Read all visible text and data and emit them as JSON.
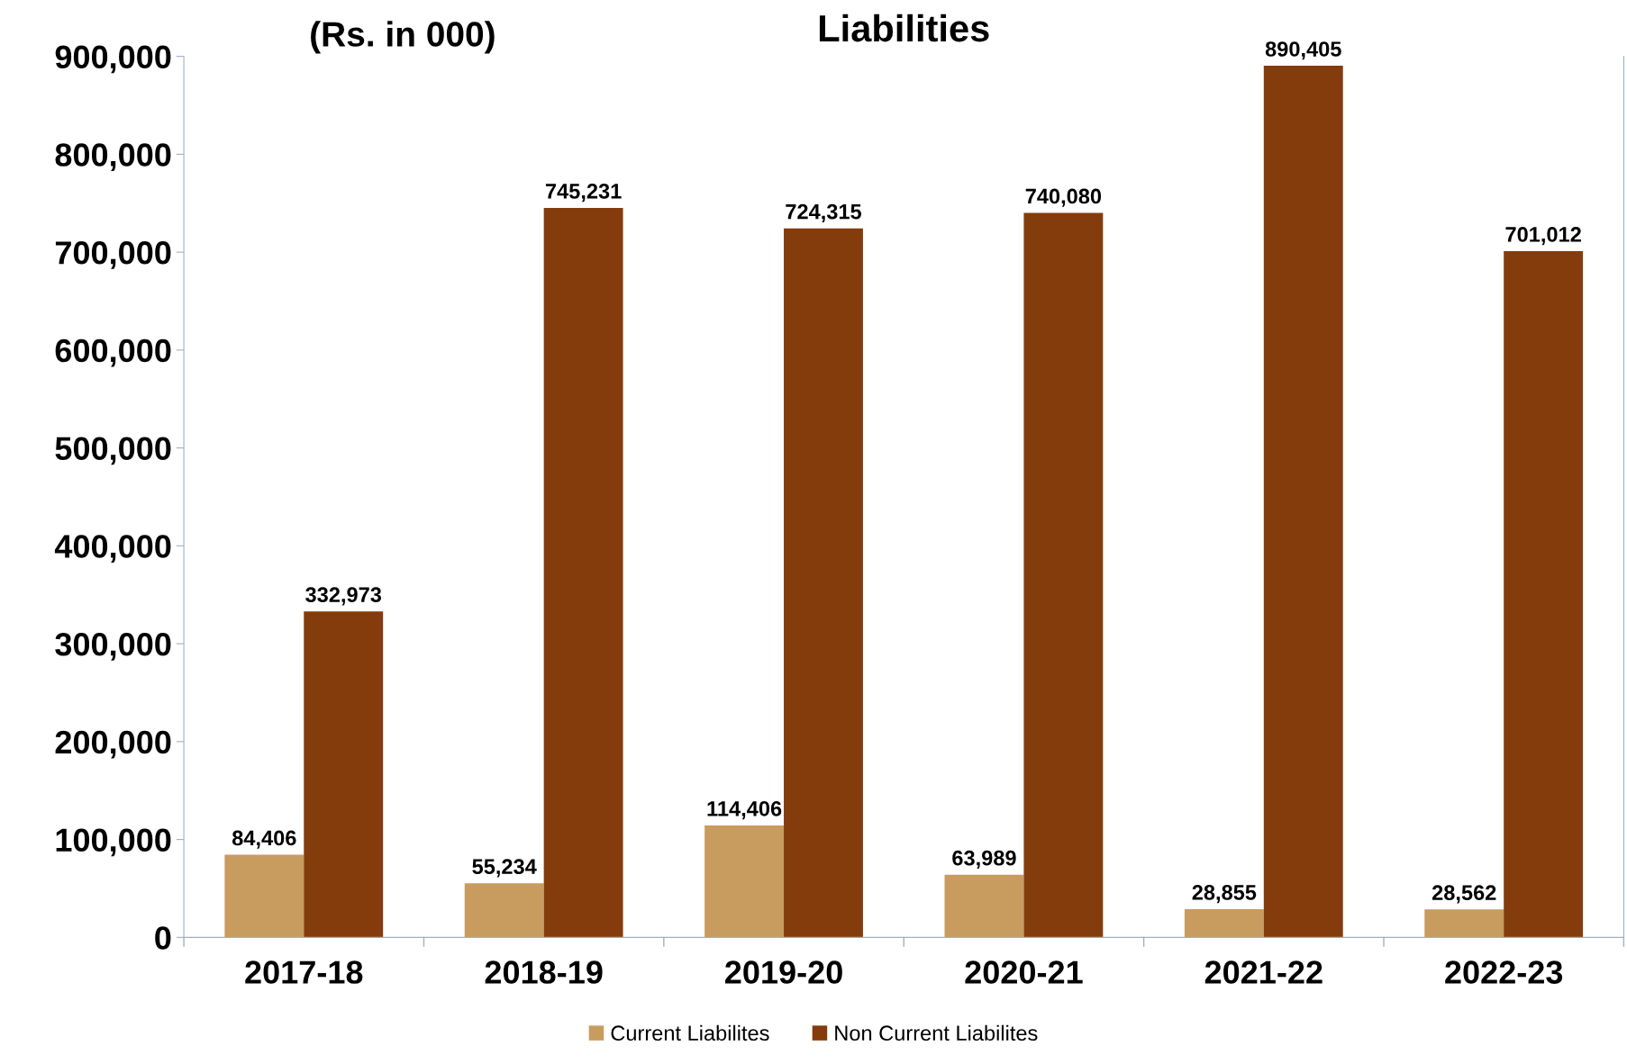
{
  "chart_data": {
    "type": "bar",
    "title": "Liabilities",
    "annotations": [
      "(Rs. in 000)"
    ],
    "categories": [
      "2017-18",
      "2018-19",
      "2019-20",
      "2020-21",
      "2021-22",
      "2022-23"
    ],
    "series": [
      {
        "name": "Current Liabilites",
        "color": "#c89b5f",
        "values": [
          84406,
          55234,
          114406,
          63989,
          28855,
          28562
        ],
        "value_labels": [
          "84,406",
          "55,234",
          "114,406",
          "63,989",
          "28,855",
          "28,562"
        ]
      },
      {
        "name": "Non Current Liabilites",
        "color": "#843c0c",
        "values": [
          332973,
          745231,
          724315,
          740080,
          890405,
          701012
        ],
        "value_labels": [
          "332,973",
          "745,231",
          "724,315",
          "740,080",
          "890,405",
          "701,012"
        ]
      }
    ],
    "ylim": [
      0,
      900000
    ],
    "yticks": [
      {
        "value": 0,
        "label": "0"
      },
      {
        "value": 100000,
        "label": "100,000"
      },
      {
        "value": 200000,
        "label": "200,000"
      },
      {
        "value": 300000,
        "label": "300,000"
      },
      {
        "value": 400000,
        "label": "400,000"
      },
      {
        "value": 500000,
        "label": "500,000"
      },
      {
        "value": 600000,
        "label": "600,000"
      },
      {
        "value": 700000,
        "label": "700,000"
      },
      {
        "value": 800000,
        "label": "800,000"
      },
      {
        "value": 900000,
        "label": "900,000"
      }
    ],
    "grid": false,
    "legend": "bottom"
  }
}
